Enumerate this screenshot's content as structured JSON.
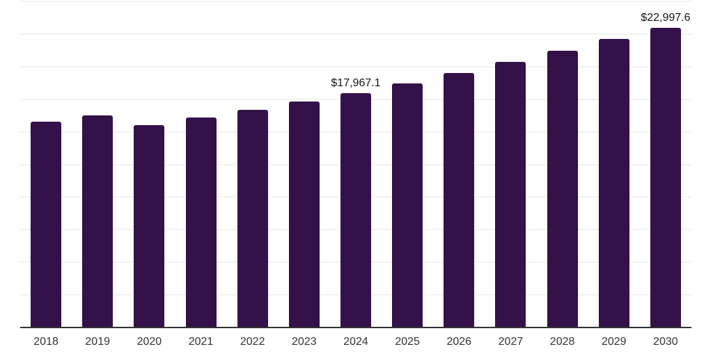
{
  "chart_data": {
    "type": "bar",
    "title": "",
    "xlabel": "",
    "ylabel": "",
    "categories": [
      "2018",
      "2019",
      "2020",
      "2021",
      "2022",
      "2023",
      "2024",
      "2025",
      "2026",
      "2027",
      "2028",
      "2029",
      "2030"
    ],
    "values": [
      15780,
      16270,
      15490,
      16080,
      16660,
      17330,
      17967.1,
      18730,
      19520,
      20340,
      21190,
      22100,
      22997.6
    ],
    "data_labels": [
      null,
      null,
      null,
      null,
      null,
      null,
      "$17,967.1",
      null,
      null,
      null,
      null,
      null,
      "$22,997.6"
    ],
    "ylim": [
      0,
      25000
    ],
    "gridline_step": 2500,
    "grid": "horizontal",
    "legend": "none",
    "colors": {
      "bar": "#341148",
      "gridline": "#f2f2f2",
      "axis_line": "#333333",
      "tick_label": "#333333",
      "data_label": "#141414"
    }
  }
}
